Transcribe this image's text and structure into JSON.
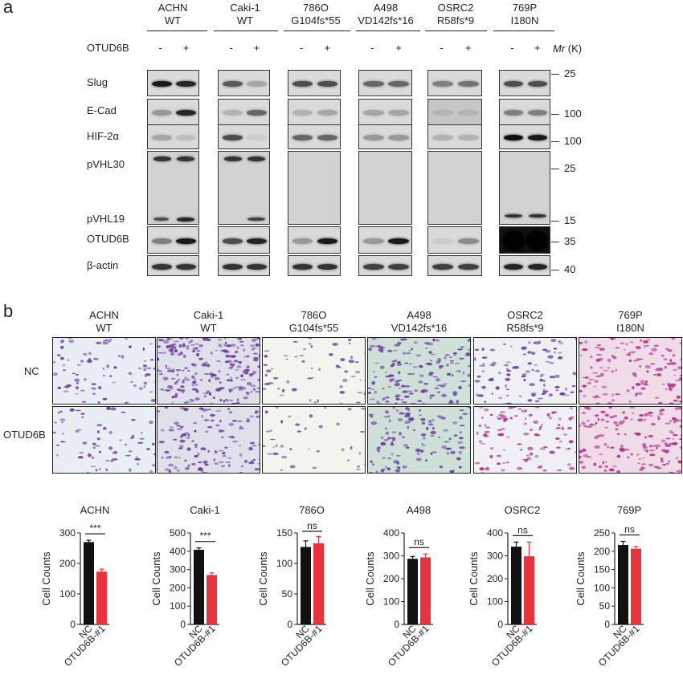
{
  "panel_a": {
    "letter": "a",
    "columns": [
      {
        "line1": "ACHN",
        "line2": "WT"
      },
      {
        "line1": "Caki-1",
        "line2": "WT"
      },
      {
        "line1": "786O",
        "line2": "G104fs*55"
      },
      {
        "line1": "A498",
        "line2": "VD142fs*16"
      },
      {
        "line1": "OSRC2",
        "line2": "R58fs*9"
      },
      {
        "line1": "769P",
        "line2": "I180N"
      }
    ],
    "treatment_label": "OTUD6B",
    "minus": "-",
    "plus": "+",
    "mr_label": "Mr",
    "mr_unit": "(K)",
    "rows": [
      "Slug",
      "E-Cad",
      "HIF-2α",
      "pVHL30",
      "pVHL19",
      "OTUD6B",
      "β-actin"
    ],
    "markers": [
      "25",
      "100",
      "100",
      "25",
      "15",
      "35",
      "40"
    ]
  },
  "panel_b": {
    "letter": "b",
    "columns": [
      {
        "line1": "ACHN",
        "line2": "WT"
      },
      {
        "line1": "Caki-1",
        "line2": "WT"
      },
      {
        "line1": "786O",
        "line2": "G104fs*55"
      },
      {
        "line1": "A498",
        "line2": "VD142fs*16"
      },
      {
        "line1": "OSRC2",
        "line2": "R58fs*9"
      },
      {
        "line1": "769P",
        "line2": "I180N"
      }
    ],
    "rows": [
      "NC",
      "OTUD6B"
    ]
  },
  "colors": {
    "nc": "#111111",
    "otud6b": "#e8323c",
    "stain": "#6a3aa0",
    "stain_pink": "#b0308a"
  },
  "chart_data": [
    {
      "type": "bar",
      "title": "ACHN",
      "ylabel": "Cell Counts",
      "categories": [
        "NC",
        "OTUD6B-#1"
      ],
      "values": [
        270,
        173
      ],
      "errors": [
        6,
        8
      ],
      "ylim": [
        0,
        300
      ],
      "yticks": [
        0,
        100,
        200,
        300
      ],
      "significance": "***"
    },
    {
      "type": "bar",
      "title": "Caki-1",
      "ylabel": "Cell Counts",
      "categories": [
        "NC",
        "OTUD6B-#1"
      ],
      "values": [
        408,
        270
      ],
      "errors": [
        10,
        12
      ],
      "ylim": [
        0,
        500
      ],
      "yticks": [
        0,
        100,
        200,
        300,
        400,
        500
      ],
      "significance": "***"
    },
    {
      "type": "bar",
      "title": "786O",
      "ylabel": "Cell Counts",
      "categories": [
        "NC",
        "OTUD6B-#1"
      ],
      "values": [
        127,
        133
      ],
      "errors": [
        10,
        11
      ],
      "ylim": [
        0,
        150
      ],
      "yticks": [
        0,
        50,
        100,
        150
      ],
      "significance": "ns"
    },
    {
      "type": "bar",
      "title": "A498",
      "ylabel": "Cell Counts",
      "categories": [
        "NC",
        "OTUD6B-#1"
      ],
      "values": [
        287,
        293
      ],
      "errors": [
        10,
        15
      ],
      "ylim": [
        0,
        400
      ],
      "yticks": [
        0,
        100,
        200,
        300,
        400
      ],
      "significance": "ns"
    },
    {
      "type": "bar",
      "title": "OSRC2",
      "ylabel": "Cell Counts",
      "categories": [
        "NC",
        "OTUD6B-#1"
      ],
      "values": [
        340,
        298
      ],
      "errors": [
        20,
        62
      ],
      "ylim": [
        0,
        400
      ],
      "yticks": [
        0,
        100,
        200,
        300,
        400
      ],
      "significance": "ns"
    },
    {
      "type": "bar",
      "title": "769P",
      "ylabel": "Cell Counts",
      "categories": [
        "NC",
        "OTUD6B-#1"
      ],
      "values": [
        217,
        207
      ],
      "errors": [
        10,
        6
      ],
      "ylim": [
        0,
        250
      ],
      "yticks": [
        0,
        50,
        100,
        150,
        200,
        250
      ],
      "significance": "ns"
    }
  ]
}
